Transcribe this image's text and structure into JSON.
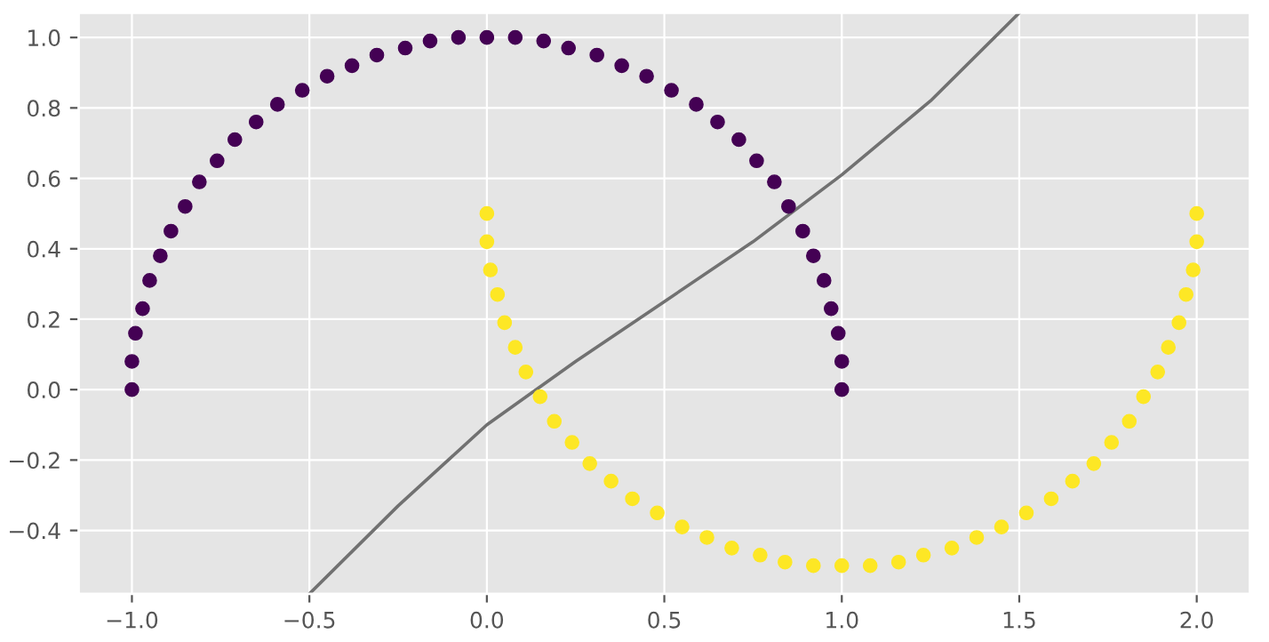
{
  "chart_data": {
    "type": "scatter",
    "grid": true,
    "legend": false,
    "xlim": [
      -1.15,
      2.15
    ],
    "ylim": [
      -0.58,
      1.07
    ],
    "xticks": [
      {
        "value": -1.0,
        "label": "−1.0"
      },
      {
        "value": -0.5,
        "label": "−0.5"
      },
      {
        "value": 0.0,
        "label": "0.0"
      },
      {
        "value": 0.5,
        "label": "0.5"
      },
      {
        "value": 1.0,
        "label": "1.0"
      },
      {
        "value": 1.5,
        "label": "1.5"
      },
      {
        "value": 2.0,
        "label": "2.0"
      }
    ],
    "yticks": [
      {
        "value": -0.4,
        "label": "−0.4"
      },
      {
        "value": -0.2,
        "label": "−0.2"
      },
      {
        "value": 0.0,
        "label": "0.0"
      },
      {
        "value": 0.2,
        "label": "0.2"
      },
      {
        "value": 0.4,
        "label": "0.4"
      },
      {
        "value": 0.6,
        "label": "0.6"
      },
      {
        "value": 0.8,
        "label": "0.8"
      },
      {
        "value": 1.0,
        "label": "1.0"
      }
    ],
    "series": [
      {
        "marker": "circle",
        "color": "#440154",
        "x": [
          1.0,
          1.0,
          0.99,
          0.97,
          0.95,
          0.92,
          0.89,
          0.85,
          0.81,
          0.76,
          0.71,
          0.65,
          0.59,
          0.52,
          0.45,
          0.38,
          0.31,
          0.23,
          0.16,
          0.08,
          0.0,
          -0.08,
          -0.16,
          -0.23,
          -0.31,
          -0.38,
          -0.45,
          -0.52,
          -0.59,
          -0.65,
          -0.71,
          -0.76,
          -0.81,
          -0.85,
          -0.89,
          -0.92,
          -0.95,
          -0.97,
          -0.99,
          -1.0,
          -1.0
        ],
        "values": [
          0.0,
          0.08,
          0.16,
          0.23,
          0.31,
          0.38,
          0.45,
          0.52,
          0.59,
          0.65,
          0.71,
          0.76,
          0.81,
          0.85,
          0.89,
          0.92,
          0.95,
          0.97,
          0.99,
          1.0,
          1.0,
          1.0,
          0.99,
          0.97,
          0.95,
          0.92,
          0.89,
          0.85,
          0.81,
          0.76,
          0.71,
          0.65,
          0.59,
          0.52,
          0.45,
          0.38,
          0.31,
          0.23,
          0.16,
          0.08,
          0.0
        ]
      },
      {
        "marker": "circle",
        "color": "#fde725",
        "x": [
          0.0,
          0.0,
          0.01,
          0.03,
          0.05,
          0.08,
          0.11,
          0.15,
          0.19,
          0.24,
          0.29,
          0.35,
          0.41,
          0.48,
          0.55,
          0.62,
          0.69,
          0.77,
          0.84,
          0.92,
          1.0,
          1.08,
          1.16,
          1.23,
          1.31,
          1.38,
          1.45,
          1.52,
          1.59,
          1.65,
          1.71,
          1.76,
          1.81,
          1.85,
          1.89,
          1.92,
          1.95,
          1.97,
          1.99,
          2.0,
          2.0
        ],
        "values": [
          0.5,
          0.42,
          0.34,
          0.27,
          0.19,
          0.12,
          0.05,
          -0.02,
          -0.09,
          -0.15,
          -0.21,
          -0.26,
          -0.31,
          -0.35,
          -0.39,
          -0.42,
          -0.45,
          -0.47,
          -0.49,
          -0.5,
          -0.5,
          -0.5,
          -0.49,
          -0.47,
          -0.45,
          -0.42,
          -0.39,
          -0.35,
          -0.31,
          -0.26,
          -0.21,
          -0.15,
          -0.09,
          -0.02,
          0.05,
          0.12,
          0.19,
          0.27,
          0.34,
          0.42,
          0.5
        ]
      },
      {
        "type": "line",
        "color": "#717171",
        "x": [
          -0.5,
          -0.25,
          0.0,
          0.25,
          0.5,
          0.75,
          1.0,
          1.25,
          1.5
        ],
        "values": [
          -0.58,
          -0.33,
          -0.1,
          0.08,
          0.25,
          0.42,
          0.61,
          0.82,
          1.07
        ]
      }
    ]
  }
}
